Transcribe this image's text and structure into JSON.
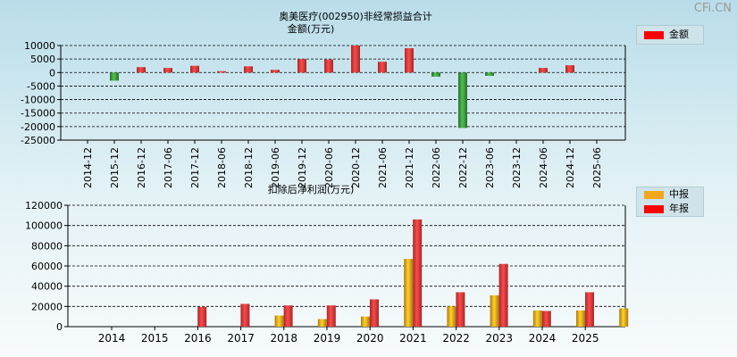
{
  "watermark": "CFi.CN",
  "chart_data": [
    {
      "type": "bar",
      "title": "奥美医疗(002950)非经常损益合计",
      "ylabel": "金额(万元)",
      "ylim": [
        -25000,
        10000
      ],
      "yticks": [
        10000,
        5000,
        0,
        -5000,
        -10000,
        -15000,
        -20000,
        -25000
      ],
      "grid": true,
      "legend_position": "top-right",
      "categories": [
        "2014-12",
        "2015-12",
        "2016-12",
        "2017-06",
        "2017-12",
        "2018-06",
        "2018-12",
        "2019-06",
        "2019-12",
        "2020-06",
        "2020-12",
        "2021-06",
        "2021-12",
        "2022-06",
        "2022-12",
        "2023-06",
        "2023-12",
        "2024-06",
        "2024-12",
        "2025-06"
      ],
      "series": [
        {
          "name": "金额",
          "color": "#e83a3a",
          "negative_color": "#3f9a3f",
          "values": [
            null,
            -3000,
            2000,
            1700,
            2500,
            500,
            2300,
            1000,
            5000,
            4800,
            10000,
            4000,
            9000,
            -1500,
            -20500,
            -1200,
            null,
            1700,
            2700,
            null
          ]
        }
      ]
    },
    {
      "type": "bar",
      "title": "扣除后净利润(万元)",
      "ylim": [
        0,
        120000
      ],
      "yticks": [
        0,
        20000,
        40000,
        60000,
        80000,
        100000,
        120000
      ],
      "grid": true,
      "legend_position": "top-right",
      "categories": [
        "2014",
        "2015",
        "2016",
        "2017",
        "2018",
        "2019",
        "2020",
        "2021",
        "2022",
        "2023",
        "2024",
        "2025"
      ],
      "series": [
        {
          "name": "中报",
          "color": "#f2a81d",
          "values": [
            null,
            null,
            null,
            11000,
            7500,
            10000,
            67000,
            20000,
            31000,
            16000,
            16000,
            18000
          ]
        },
        {
          "name": "年报",
          "color": "#e83a3a",
          "values": [
            null,
            19500,
            22500,
            21000,
            21000,
            27000,
            106000,
            34000,
            62000,
            15500,
            34000,
            null
          ]
        }
      ]
    }
  ]
}
